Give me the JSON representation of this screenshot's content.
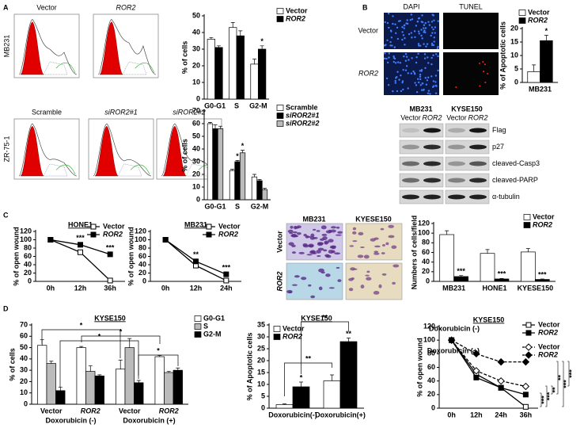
{
  "panel_letters": [
    "A",
    "B",
    "C",
    "D"
  ],
  "flow": {
    "top_row_label": "MB231",
    "top": [
      "Vector",
      "ROR2"
    ],
    "bottom_row_label": "ZR-75-1",
    "bottom": [
      "Scramble",
      "siROR2#1",
      "siROR2#2"
    ]
  },
  "tunel": {
    "columns": [
      "DAPI",
      "TUNEL"
    ],
    "rows": [
      "Vector",
      "ROR2"
    ]
  },
  "blot": {
    "columns": [
      "MB231",
      "KYSE150"
    ],
    "lanes": [
      "Vector",
      "ROR2"
    ],
    "bands": [
      "Flag",
      "p27",
      "cleaved-Casp3",
      "cleaved-PARP",
      "α-tubulin"
    ]
  },
  "invasion": {
    "columns": [
      "MB231",
      "KYESE150"
    ],
    "rows": [
      "Vector",
      "ROR2"
    ]
  },
  "chart_data": [
    {
      "type": "bar",
      "ylabel": "% of cells",
      "categories": [
        "G0-G1",
        "S",
        "G2-M"
      ],
      "ylim": [
        0,
        50
      ],
      "yticks": [
        0,
        10,
        20,
        30,
        40,
        50
      ],
      "series": [
        {
          "name": "Vector",
          "color": "#ffffff",
          "values": [
            36,
            43,
            21
          ],
          "errors": [
            1,
            3,
            3
          ],
          "significance": [
            null,
            null,
            null
          ]
        },
        {
          "name": "ROR2",
          "color": "#000000",
          "values": [
            31,
            38,
            30
          ],
          "errors": [
            1,
            3,
            2
          ],
          "significance": [
            null,
            null,
            "*"
          ]
        }
      ]
    },
    {
      "type": "bar",
      "ylabel": "% of cells",
      "categories": [
        "G0-G1",
        "S",
        "G2-M"
      ],
      "ylim": [
        0,
        70
      ],
      "yticks": [
        0,
        10,
        20,
        30,
        40,
        50,
        60,
        70
      ],
      "series": [
        {
          "name": "Scramble",
          "color": "#ffffff",
          "values": [
            60,
            23,
            18
          ],
          "errors": [
            1,
            1,
            2
          ],
          "significance": [
            null,
            null,
            null
          ]
        },
        {
          "name": "siROR2#1",
          "color": "#000000",
          "values": [
            56,
            30,
            15
          ],
          "errors": [
            3,
            1,
            1
          ],
          "significance": [
            null,
            "*",
            null
          ]
        },
        {
          "name": "siROR2#2",
          "color": "#bbbbbb",
          "values": [
            56,
            37,
            8
          ],
          "errors": [
            2,
            2,
            1
          ],
          "significance": [
            null,
            "*",
            null
          ]
        }
      ]
    },
    {
      "type": "bar",
      "ylabel": "% of Apoptotic cells",
      "categories": [
        "MB231"
      ],
      "ylim": [
        0,
        20
      ],
      "yticks": [
        0,
        5,
        10,
        15,
        20
      ],
      "series": [
        {
          "name": "Vector",
          "color": "#ffffff",
          "values": [
            4
          ],
          "errors": [
            2.5
          ],
          "significance": [
            null
          ]
        },
        {
          "name": "ROR2",
          "color": "#000000",
          "values": [
            15.5
          ],
          "errors": [
            2
          ],
          "significance": [
            "*"
          ]
        }
      ]
    },
    {
      "type": "line",
      "title": "HONE1",
      "ylabel": "% of open wound",
      "categories": [
        "0h",
        "12h",
        "36h"
      ],
      "ylim": [
        0,
        120
      ],
      "yticks": [
        0,
        20,
        40,
        60,
        80,
        100,
        120
      ],
      "series": [
        {
          "name": "Vector",
          "color": "#000000",
          "marker": "square",
          "filled": false,
          "dashed": false,
          "values": [
            100,
            70,
            2
          ],
          "significance": [
            null,
            null,
            null
          ]
        },
        {
          "name": "ROR2",
          "color": "#000000",
          "marker": "square",
          "filled": true,
          "dashed": false,
          "values": [
            100,
            88,
            65
          ],
          "significance": [
            null,
            "***",
            "***"
          ]
        }
      ]
    },
    {
      "type": "line",
      "title": "MB231",
      "ylabel": "% of open wound",
      "categories": [
        "0h",
        "12h",
        "24h"
      ],
      "ylim": [
        0,
        120
      ],
      "yticks": [
        0,
        20,
        40,
        60,
        80,
        100,
        120
      ],
      "series": [
        {
          "name": "Vector",
          "color": "#000000",
          "marker": "square",
          "filled": false,
          "dashed": false,
          "values": [
            100,
            38,
            2
          ],
          "significance": [
            null,
            null,
            null
          ]
        },
        {
          "name": "ROR2",
          "color": "#000000",
          "marker": "square",
          "filled": true,
          "dashed": false,
          "values": [
            100,
            48,
            17
          ],
          "significance": [
            null,
            "**",
            "***"
          ]
        }
      ]
    },
    {
      "type": "bar",
      "ylabel": "Numbers of cells/field",
      "categories": [
        "MB231",
        "HONE1",
        "KYESE150"
      ],
      "ylim": [
        0,
        120
      ],
      "yticks": [
        0,
        20,
        40,
        60,
        80,
        100,
        120
      ],
      "series": [
        {
          "name": "Vector",
          "color": "#ffffff",
          "values": [
            97,
            58,
            61
          ],
          "errors": [
            8,
            8,
            7
          ],
          "significance": [
            null,
            null,
            null
          ]
        },
        {
          "name": "ROR2",
          "color": "#000000",
          "values": [
            10,
            5,
            4
          ],
          "errors": [
            2,
            1,
            1
          ],
          "significance": [
            "***",
            "***",
            "***"
          ]
        }
      ]
    },
    {
      "type": "bar",
      "title": "KYSE150",
      "ylabel": "% of cells",
      "categories": [
        "Vector",
        "ROR2",
        "Vector",
        "ROR2"
      ],
      "groups": [
        "Doxorubicin (-)",
        "Doxorubicin (+)"
      ],
      "ylim": [
        0,
        70
      ],
      "yticks": [
        0,
        10,
        20,
        30,
        40,
        50,
        60,
        70
      ],
      "annotations": [
        "*",
        "*",
        "*",
        "*"
      ],
      "series": [
        {
          "name": "G0-G1",
          "color": "#ffffff",
          "values": [
            52,
            50,
            31,
            42
          ],
          "errors": [
            5,
            1,
            8,
            1
          ],
          "significance": [
            null,
            null,
            null,
            null
          ]
        },
        {
          "name": "S",
          "color": "#bbbbbb",
          "values": [
            36,
            29,
            50,
            28
          ],
          "errors": [
            2,
            5,
            8,
            1
          ],
          "significance": [
            null,
            null,
            null,
            null
          ]
        },
        {
          "name": "G2-M",
          "color": "#000000",
          "values": [
            12,
            25,
            19,
            30
          ],
          "errors": [
            3,
            1,
            2,
            2
          ],
          "significance": [
            null,
            null,
            null,
            null
          ]
        }
      ]
    },
    {
      "type": "bar",
      "title": "KYSE150",
      "ylabel": "% of Apoptotic cells",
      "categories": [
        "Doxorubicin(-)",
        "Doxorubicin(+)"
      ],
      "ylim": [
        0,
        35
      ],
      "yticks": [
        0,
        5,
        10,
        15,
        20,
        25,
        30,
        35
      ],
      "annotations": [
        "**",
        "**"
      ],
      "series": [
        {
          "name": "Vector",
          "color": "#ffffff",
          "values": [
            1.5,
            11.5
          ],
          "errors": [
            0.3,
            2.5
          ],
          "significance": [
            null,
            null
          ]
        },
        {
          "name": "ROR2",
          "color": "#000000",
          "values": [
            9,
            28
          ],
          "errors": [
            2,
            1.5
          ],
          "significance": [
            "*",
            "**"
          ]
        }
      ]
    },
    {
      "type": "line",
      "title": "KYSE150",
      "ylabel": "% of open wound",
      "categories": [
        "0h",
        "12h",
        "24h",
        "36h"
      ],
      "ylim": [
        0,
        120
      ],
      "yticks": [
        0,
        20,
        40,
        60,
        80,
        100,
        120
      ],
      "legend_titles": [
        "Doxorubicin (-)",
        "Doxorubicin (+)"
      ],
      "annotations": [
        "***",
        "***",
        "**",
        "**",
        "***",
        "***"
      ],
      "series": [
        {
          "name": "Vector",
          "color": "#000000",
          "marker": "square",
          "filled": false,
          "dashed": false,
          "values": [
            100,
            50,
            30,
            2
          ],
          "significance": [
            null,
            null,
            null,
            null
          ]
        },
        {
          "name": "ROR2",
          "color": "#000000",
          "marker": "square",
          "filled": true,
          "dashed": false,
          "values": [
            100,
            45,
            30,
            20
          ],
          "significance": [
            null,
            null,
            null,
            null
          ]
        },
        {
          "name": "Vector",
          "color": "#000000",
          "marker": "diamond",
          "filled": false,
          "dashed": true,
          "values": [
            100,
            55,
            40,
            32
          ],
          "significance": [
            null,
            null,
            null,
            null
          ]
        },
        {
          "name": "ROR2",
          "color": "#000000",
          "marker": "diamond",
          "filled": true,
          "dashed": true,
          "values": [
            100,
            80,
            68,
            68
          ],
          "significance": [
            null,
            null,
            null,
            null
          ]
        }
      ]
    }
  ]
}
